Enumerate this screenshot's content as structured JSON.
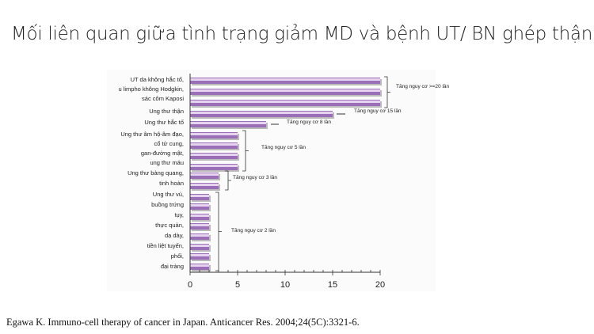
{
  "title": "Mối liên quan giữa tình trạng giảm MD và bệnh UT/ BN ghép thận",
  "citation": "Egawa K. Immuno-cell therapy of cancer in Japan. Anticancer Res. 2004;24(5C):3321-6.",
  "chart_data": {
    "type": "bar",
    "orientation": "horizontal",
    "values": [
      20,
      20,
      20,
      15,
      8,
      5,
      5,
      5,
      5,
      3,
      3,
      2,
      2,
      2,
      2,
      2,
      2,
      2,
      2
    ],
    "label_lines": [
      "UT da không hắc tố,",
      "u limpho không Hodgkin,",
      "sác côm Kaposi",
      "Ung thư thận",
      "Ung thư hắc tố",
      "Ung thư âm hộ-âm đạo,",
      "cổ tử cung,",
      "gan-đường mật,",
      "ung thư máu",
      "Ung thư bàng quang,",
      "tinh hoàn",
      "Ung thư vú,",
      "buồng trứng",
      "tụy,",
      "thực quản,",
      "dạ dày,",
      "tiền liệt tuyến,",
      "phổi,",
      "đại tràng"
    ],
    "annotations": [
      "Tăng nguy cơ >=20 lần",
      "Tăng nguy cơ 15 lần",
      "Tăng nguy cơ 8 lần",
      "Tăng nguy cơ 5 lần",
      "Tăng nguy cơ 3 lần",
      "Tăng nguy cơ 2 lần"
    ],
    "xticks": [
      "0",
      "5",
      "10",
      "15",
      "20"
    ],
    "xlim": [
      0,
      20
    ],
    "bar_color": "#9b6fb8",
    "bar_highlight": "#e6d3ef"
  }
}
